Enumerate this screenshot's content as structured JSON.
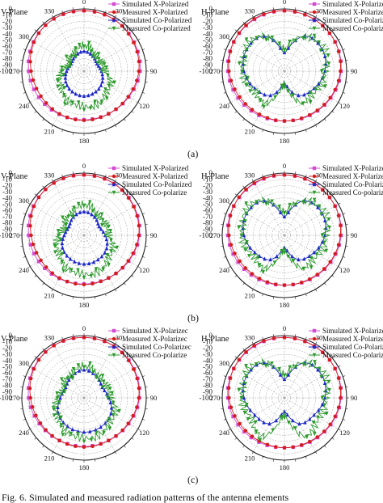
{
  "caption": "Fig. 6.   Simulated and measured radiation patterns of the antenna elements",
  "colors": {
    "sim_x": "#d24bd2",
    "meas_x": "#d41c1c",
    "sim_co": "#1d28c8",
    "meas_co": "#2a9a2a",
    "grid": "#9a9a9a"
  },
  "angle_labels": [
    "0",
    "30",
    "90",
    "120",
    "180",
    "210",
    "240",
    "270",
    "300",
    "330"
  ],
  "chart_data": [
    {
      "type": "polar",
      "panel": "(a)",
      "plane": "V-Plane",
      "rlim": [
        -100,
        0
      ],
      "grid": true,
      "ticks": [
        0,
        -10,
        -20,
        -30,
        -40,
        -50,
        -60,
        -70,
        -80,
        -90,
        -100
      ],
      "legend_position": "top-right",
      "legend": [
        "Simulated X-Polarized",
        "Measured X-Polarized",
        "Simulated Co-Polarized",
        "Measured Co-polarized"
      ],
      "series": [
        {
          "name": "Simulated X-Polarized",
          "theta": [
            0,
            30,
            60,
            90,
            120,
            150,
            180,
            210,
            240,
            270,
            300,
            330
          ],
          "r": [
            -3,
            -4,
            -7,
            -10,
            -17,
            -21,
            -22,
            -20,
            -16,
            -11,
            -6,
            -3
          ]
        },
        {
          "name": "Measured X-Polarized",
          "theta": [
            0,
            30,
            60,
            90,
            120,
            150,
            180,
            210,
            240,
            270,
            300,
            330
          ],
          "r": [
            -3,
            -4,
            -8,
            -12,
            -18,
            -21,
            -21,
            -21,
            -20,
            -15,
            -7,
            -3
          ]
        },
        {
          "name": "Simulated Co-Polarized",
          "theta": [
            0,
            30,
            60,
            90,
            120,
            150,
            180,
            210,
            240,
            270,
            300,
            330
          ],
          "r": [
            -68,
            -72,
            -76,
            -72,
            -66,
            -62,
            -60,
            -62,
            -66,
            -72,
            -76,
            -72
          ]
        },
        {
          "name": "Measured Co-polarized",
          "theta": [
            0,
            30,
            60,
            90,
            120,
            150,
            180,
            210,
            240,
            270,
            300,
            330
          ],
          "r": [
            -60,
            -66,
            -70,
            -64,
            -52,
            -45,
            -42,
            -47,
            -55,
            -65,
            -72,
            -66
          ]
        }
      ]
    },
    {
      "type": "polar",
      "panel": "(a)",
      "plane": "H-Plane",
      "rlim": [
        -100,
        0
      ],
      "grid": true,
      "ticks": [
        0,
        -10,
        -20,
        -30,
        -40,
        -50,
        -60,
        -70,
        -80,
        -90,
        -100
      ],
      "legend_position": "top-right",
      "legend": [
        "Simulated X-Polarized",
        "Measured X-Polarized",
        "Simulated Co-Polarized",
        "Measured Co-polarized"
      ],
      "series": [
        {
          "name": "Simulated X-Polarized",
          "theta": [
            0,
            30,
            60,
            90,
            120,
            150,
            180,
            210,
            240,
            270,
            300,
            330
          ],
          "r": [
            -3,
            -4,
            -6,
            -9,
            -14,
            -18,
            -20,
            -18,
            -14,
            -9,
            -6,
            -4
          ]
        },
        {
          "name": "Measured X-Polarized",
          "theta": [
            0,
            30,
            60,
            90,
            120,
            150,
            180,
            210,
            240,
            270,
            300,
            330
          ],
          "r": [
            -3,
            -4,
            -6,
            -10,
            -15,
            -19,
            -20,
            -20,
            -17,
            -11,
            -6,
            -3
          ]
        },
        {
          "name": "Simulated Co-Polarized",
          "theta": [
            0,
            30,
            60,
            90,
            120,
            150,
            180,
            210,
            240,
            270,
            300,
            330
          ],
          "r": [
            -70,
            -35,
            -30,
            -35,
            -45,
            -55,
            -80,
            -55,
            -45,
            -35,
            -30,
            -35
          ]
        },
        {
          "name": "Measured Co-polarized",
          "theta": [
            0,
            30,
            60,
            90,
            120,
            150,
            180,
            210,
            240,
            270,
            300,
            330
          ],
          "r": [
            -66,
            -34,
            -28,
            -33,
            -40,
            -42,
            -78,
            -42,
            -40,
            -33,
            -28,
            -34
          ]
        }
      ]
    },
    {
      "type": "polar",
      "panel": "(b)",
      "plane": "V-Plane",
      "rlim": [
        -100,
        0
      ],
      "grid": true,
      "ticks": [
        0,
        -10,
        -20,
        -30,
        -40,
        -50,
        -60,
        -70,
        -80,
        -90,
        -100
      ],
      "legend_position": "top-right",
      "legend": [
        "Simulated X-Polarized",
        "Measured X-Polarized",
        "Simulated Co-Polarized",
        "Measured Co-polarize"
      ],
      "series": [
        {
          "name": "Simulated X-Polarized",
          "theta": [
            0,
            30,
            60,
            90,
            120,
            150,
            180,
            210,
            240,
            270,
            300,
            330
          ],
          "r": [
            -3,
            -4,
            -7,
            -11,
            -17,
            -21,
            -22,
            -20,
            -16,
            -11,
            -6,
            -3
          ]
        },
        {
          "name": "Measured X-Polarized",
          "theta": [
            0,
            30,
            60,
            90,
            120,
            150,
            180,
            210,
            240,
            270,
            300,
            330
          ],
          "r": [
            -3,
            -4,
            -8,
            -12,
            -18,
            -21,
            -21,
            -21,
            -20,
            -15,
            -7,
            -3
          ]
        },
        {
          "name": "Simulated Co-Polarized",
          "theta": [
            0,
            30,
            60,
            90,
            120,
            150,
            180,
            210,
            240,
            270,
            300,
            330
          ],
          "r": [
            -62,
            -66,
            -72,
            -66,
            -58,
            -55,
            -54,
            -56,
            -60,
            -68,
            -72,
            -66
          ]
        },
        {
          "name": "Measured Co-polarize",
          "theta": [
            0,
            30,
            60,
            90,
            120,
            150,
            180,
            210,
            240,
            270,
            300,
            330
          ],
          "r": [
            -52,
            -58,
            -62,
            -58,
            -48,
            -40,
            -36,
            -42,
            -50,
            -60,
            -64,
            -58
          ]
        }
      ]
    },
    {
      "type": "polar",
      "panel": "(b)",
      "plane": "H-Plane",
      "rlim": [
        -100,
        0
      ],
      "grid": true,
      "ticks": [
        0,
        -10,
        -20,
        -30,
        -40,
        -50,
        -60,
        -70,
        -80,
        -90,
        -100
      ],
      "legend_position": "top-right",
      "legend": [
        "Simulated X-Polarized",
        "Measured X-Polarized",
        "Simulated Co-Polarized",
        "Measured Co-polarize"
      ],
      "series": [
        {
          "name": "Simulated X-Polarized",
          "theta": [
            0,
            30,
            60,
            90,
            120,
            150,
            180,
            210,
            240,
            270,
            300,
            330
          ],
          "r": [
            -3,
            -4,
            -6,
            -9,
            -14,
            -18,
            -20,
            -18,
            -14,
            -9,
            -6,
            -4
          ]
        },
        {
          "name": "Measured X-Polarized",
          "theta": [
            0,
            30,
            60,
            90,
            120,
            150,
            180,
            210,
            240,
            270,
            300,
            330
          ],
          "r": [
            -3,
            -4,
            -6,
            -10,
            -15,
            -19,
            -20,
            -20,
            -17,
            -11,
            -6,
            -3
          ]
        },
        {
          "name": "Simulated Co-Polarized",
          "theta": [
            0,
            30,
            60,
            90,
            120,
            150,
            180,
            210,
            240,
            270,
            300,
            330
          ],
          "r": [
            -70,
            -36,
            -30,
            -35,
            -45,
            -55,
            -80,
            -55,
            -45,
            -35,
            -30,
            -36
          ]
        },
        {
          "name": "Measured Co-polarize",
          "theta": [
            0,
            30,
            60,
            90,
            120,
            150,
            180,
            210,
            240,
            270,
            300,
            330
          ],
          "r": [
            -64,
            -34,
            -27,
            -32,
            -38,
            -40,
            -76,
            -40,
            -38,
            -32,
            -27,
            -34
          ]
        }
      ]
    },
    {
      "type": "polar",
      "panel": "(c)",
      "plane": "V-Plane",
      "rlim": [
        -100,
        0
      ],
      "grid": true,
      "ticks": [
        0,
        -10,
        -20,
        -30,
        -40,
        -50,
        -60,
        -70,
        -80,
        -90,
        -100
      ],
      "legend_position": "top-right",
      "legend": [
        "Simulated X-Polarizec",
        "Measured X-Polarizec",
        "Simulated Co-Polarizec",
        "Measured Co-polarize"
      ],
      "series": [
        {
          "name": "Simulated X-Polarizec",
          "theta": [
            0,
            30,
            60,
            90,
            120,
            150,
            180,
            210,
            240,
            270,
            300,
            330
          ],
          "r": [
            -3,
            -4,
            -7,
            -11,
            -17,
            -21,
            -22,
            -21,
            -17,
            -11,
            -6,
            -3
          ]
        },
        {
          "name": "Measured X-Polarizec",
          "theta": [
            0,
            30,
            60,
            90,
            120,
            150,
            180,
            210,
            240,
            270,
            300,
            330
          ],
          "r": [
            -3,
            -4,
            -8,
            -12,
            -18,
            -21,
            -21,
            -21,
            -19,
            -14,
            -7,
            -3
          ]
        },
        {
          "name": "Simulated Co-Polarizec",
          "theta": [
            0,
            30,
            60,
            90,
            120,
            150,
            180,
            210,
            240,
            270,
            300,
            330
          ],
          "r": [
            -55,
            -60,
            -66,
            -60,
            -50,
            -46,
            -45,
            -47,
            -52,
            -62,
            -66,
            -60
          ]
        },
        {
          "name": "Measured Co-polarize",
          "theta": [
            0,
            30,
            60,
            90,
            120,
            150,
            180,
            210,
            240,
            270,
            300,
            330
          ],
          "r": [
            -50,
            -56,
            -60,
            -55,
            -44,
            -38,
            -34,
            -40,
            -48,
            -58,
            -62,
            -56
          ]
        }
      ]
    },
    {
      "type": "polar",
      "panel": "(c)",
      "plane": "H-Plane",
      "rlim": [
        -100,
        0
      ],
      "grid": true,
      "ticks": [
        0,
        -10,
        -20,
        -30,
        -40,
        -50,
        -60,
        -70,
        -80,
        -90,
        -100
      ],
      "legend_position": "top-right",
      "legend": [
        "Simulated X-Polarized",
        "Measured X-Polarized",
        "Simulated Co-Polarized",
        "Measured Co-polarize"
      ],
      "series": [
        {
          "name": "Simulated X-Polarized",
          "theta": [
            0,
            30,
            60,
            90,
            120,
            150,
            180,
            210,
            240,
            270,
            300,
            330
          ],
          "r": [
            -3,
            -4,
            -6,
            -9,
            -14,
            -18,
            -20,
            -18,
            -14,
            -9,
            -6,
            -4
          ]
        },
        {
          "name": "Measured X-Polarized",
          "theta": [
            0,
            30,
            60,
            90,
            120,
            150,
            180,
            210,
            240,
            270,
            300,
            330
          ],
          "r": [
            -3,
            -4,
            -6,
            -10,
            -15,
            -19,
            -20,
            -20,
            -17,
            -11,
            -6,
            -3
          ]
        },
        {
          "name": "Simulated Co-Polarized",
          "theta": [
            0,
            30,
            60,
            90,
            120,
            150,
            180,
            210,
            240,
            270,
            300,
            330
          ],
          "r": [
            -70,
            -35,
            -30,
            -35,
            -45,
            -52,
            -78,
            -52,
            -45,
            -35,
            -30,
            -35
          ]
        },
        {
          "name": "Measured Co-polarize",
          "theta": [
            0,
            30,
            60,
            90,
            120,
            150,
            180,
            210,
            240,
            270,
            300,
            330
          ],
          "r": [
            -64,
            -33,
            -27,
            -32,
            -36,
            -30,
            -72,
            -30,
            -36,
            -32,
            -27,
            -33
          ]
        }
      ]
    }
  ]
}
